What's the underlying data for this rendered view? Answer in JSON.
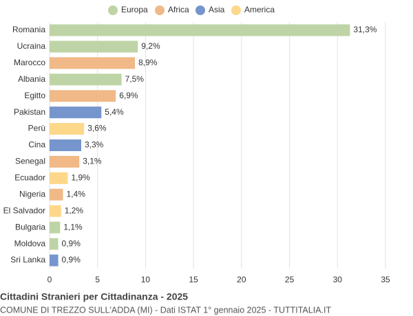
{
  "chart_data": {
    "type": "bar",
    "orientation": "horizontal",
    "title": "Cittadini Stranieri per Cittadinanza - 2025",
    "subtitle": "COMUNE DI TREZZO SULL'ADDA (MI) - Dati ISTAT 1° gennaio 2025 - TUTTITALIA.IT",
    "categories": [
      "Romania",
      "Ucraina",
      "Marocco",
      "Albania",
      "Egitto",
      "Pakistan",
      "Perù",
      "Cina",
      "Senegal",
      "Ecuador",
      "Nigeria",
      "El Salvador",
      "Bulgaria",
      "Moldova",
      "Sri Lanka"
    ],
    "series": [
      {
        "name": "Europa",
        "color": "#bfd4a6",
        "values": [
          31.3,
          9.2,
          null,
          7.5,
          null,
          null,
          null,
          null,
          null,
          null,
          null,
          null,
          1.1,
          0.9,
          null
        ],
        "value_labels": [
          "31,3%",
          "9,2%",
          null,
          "7,5%",
          null,
          null,
          null,
          null,
          null,
          null,
          null,
          null,
          "1,1%",
          "0,9%",
          null
        ]
      },
      {
        "name": "Africa",
        "color": "#f0b987",
        "values": [
          null,
          null,
          8.9,
          null,
          6.9,
          null,
          null,
          null,
          3.1,
          null,
          1.4,
          null,
          null,
          null,
          null
        ],
        "value_labels": [
          null,
          null,
          "8,9%",
          null,
          "6,9%",
          null,
          null,
          null,
          "3,1%",
          null,
          "1,4%",
          null,
          null,
          null,
          null
        ]
      },
      {
        "name": "Asia",
        "color": "#7595cc",
        "values": [
          null,
          null,
          null,
          null,
          null,
          5.4,
          null,
          3.3,
          null,
          null,
          null,
          null,
          null,
          null,
          0.9
        ],
        "value_labels": [
          null,
          null,
          null,
          null,
          null,
          "5,4%",
          null,
          "3,3%",
          null,
          null,
          null,
          null,
          null,
          null,
          "0,9%"
        ]
      },
      {
        "name": "America",
        "color": "#fdd88a",
        "values": [
          null,
          null,
          null,
          null,
          null,
          null,
          3.6,
          null,
          null,
          1.9,
          null,
          1.2,
          null,
          null,
          null
        ],
        "value_labels": [
          null,
          null,
          null,
          null,
          null,
          null,
          "3,6%",
          null,
          null,
          "1,9%",
          null,
          "1,2%",
          null,
          null,
          null
        ]
      }
    ],
    "xlim": [
      0,
      35
    ],
    "xticks": [
      0,
      5,
      10,
      15,
      20,
      25,
      30,
      35
    ],
    "grid": true,
    "legend": "top"
  }
}
